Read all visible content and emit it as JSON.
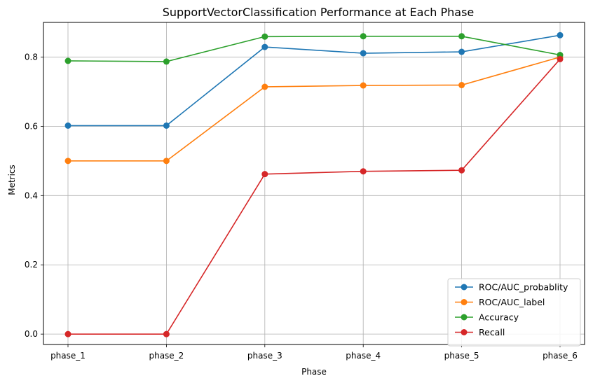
{
  "chart_data": {
    "type": "line",
    "title": "SupportVectorClassification Performance at Each Phase",
    "xlabel": "Phase",
    "ylabel": "Metrics",
    "categories": [
      "phase_1",
      "phase_2",
      "phase_3",
      "phase_4",
      "phase_5",
      "phase_6"
    ],
    "ylim": [
      -0.03,
      0.9
    ],
    "yticks": [
      0.0,
      0.2,
      0.4,
      0.6,
      0.8
    ],
    "ytick_labels": [
      "0.0",
      "0.2",
      "0.4",
      "0.6",
      "0.8"
    ],
    "grid": true,
    "legend_position": "lower-right",
    "series": [
      {
        "name": "ROC/AUC_probablity",
        "color": "#1f77b4",
        "values": [
          0.602,
          0.602,
          0.829,
          0.811,
          0.815,
          0.863
        ]
      },
      {
        "name": "ROC/AUC_label",
        "color": "#ff7f0e",
        "values": [
          0.5,
          0.5,
          0.714,
          0.718,
          0.719,
          0.8
        ]
      },
      {
        "name": "Accuracy",
        "color": "#2ca02c",
        "values": [
          0.789,
          0.787,
          0.859,
          0.86,
          0.86,
          0.806
        ]
      },
      {
        "name": "Recall",
        "color": "#d62728",
        "values": [
          0.0,
          0.0,
          0.462,
          0.47,
          0.473,
          0.794
        ]
      }
    ]
  }
}
